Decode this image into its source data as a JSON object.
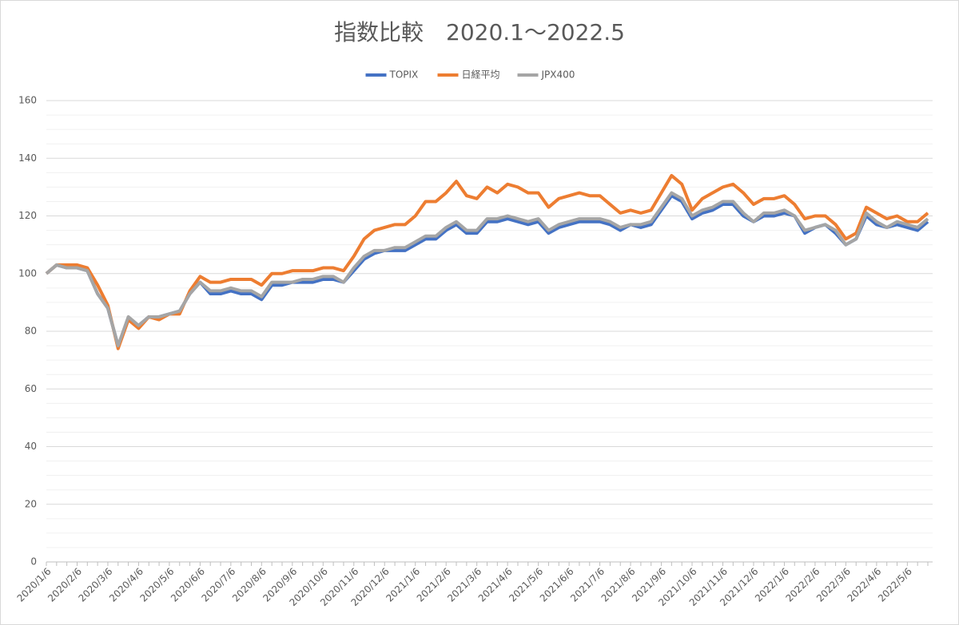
{
  "chart_data": {
    "type": "line",
    "title": "指数比較　2020.1～2022.5",
    "categories": [
      "2020/1/6",
      null,
      null,
      "2020/2/6",
      null,
      null,
      "2020/3/6",
      null,
      null,
      "2020/4/6",
      null,
      null,
      "2020/5/6",
      null,
      null,
      "2020/6/6",
      null,
      null,
      "2020/7/6",
      null,
      null,
      "2020/8/6",
      null,
      null,
      "2020/9/6",
      null,
      null,
      "2020/10/6",
      null,
      null,
      "2020/11/6",
      null,
      null,
      "2020/12/6",
      null,
      null,
      "2021/1/6",
      null,
      null,
      "2021/2/6",
      null,
      null,
      "2021/3/6",
      null,
      null,
      "2021/4/6",
      null,
      null,
      "2021/5/6",
      null,
      null,
      "2021/6/6",
      null,
      null,
      "2021/7/6",
      null,
      null,
      "2021/8/6",
      null,
      null,
      "2021/9/6",
      null,
      null,
      "2021/10/6",
      null,
      null,
      "2021/11/6",
      null,
      null,
      "2021/12/6",
      null,
      null,
      "2022/1/6",
      null,
      null,
      "2022/2/6",
      null,
      null,
      "2022/3/6",
      null,
      null,
      "2022/4/6",
      null,
      null,
      "2022/5/6",
      null,
      null
    ],
    "series": [
      {
        "name": "TOPIX",
        "color": "#4472c4",
        "values": [
          100,
          103,
          102,
          102,
          101,
          93,
          88,
          75,
          84,
          82,
          85,
          85,
          86,
          87,
          93,
          97,
          93,
          93,
          94,
          93,
          93,
          91,
          96,
          96,
          97,
          97,
          97,
          98,
          98,
          97,
          101,
          105,
          107,
          108,
          108,
          108,
          110,
          112,
          112,
          115,
          117,
          114,
          114,
          118,
          118,
          119,
          118,
          117,
          118,
          114,
          116,
          117,
          118,
          118,
          118,
          117,
          115,
          117,
          116,
          117,
          122,
          127,
          125,
          119,
          121,
          122,
          124,
          124,
          120,
          118,
          120,
          120,
          121,
          120,
          114,
          116,
          117,
          114,
          110,
          112,
          120,
          117,
          116,
          117,
          116,
          115,
          118
        ]
      },
      {
        "name": "日経平均",
        "color": "#ed7d31",
        "values": [
          100,
          103,
          103,
          103,
          102,
          96,
          89,
          74,
          84,
          81,
          85,
          84,
          86,
          86,
          94,
          99,
          97,
          97,
          98,
          98,
          98,
          96,
          100,
          100,
          101,
          101,
          101,
          102,
          102,
          101,
          106,
          112,
          115,
          116,
          117,
          117,
          120,
          125,
          125,
          128,
          132,
          127,
          126,
          130,
          128,
          131,
          130,
          128,
          128,
          123,
          126,
          127,
          128,
          127,
          127,
          124,
          121,
          122,
          121,
          122,
          128,
          134,
          131,
          122,
          126,
          128,
          130,
          131,
          128,
          124,
          126,
          126,
          127,
          124,
          119,
          120,
          120,
          117,
          112,
          114,
          123,
          121,
          119,
          120,
          118,
          118,
          121
        ]
      },
      {
        "name": "JPX400",
        "color": "#a5a5a5",
        "values": [
          100,
          103,
          102,
          102,
          101,
          93,
          88,
          75,
          85,
          82,
          85,
          85,
          86,
          87,
          93,
          97,
          94,
          94,
          95,
          94,
          94,
          92,
          97,
          97,
          97,
          98,
          98,
          99,
          99,
          97,
          102,
          106,
          108,
          108,
          109,
          109,
          111,
          113,
          113,
          116,
          118,
          115,
          115,
          119,
          119,
          120,
          119,
          118,
          119,
          115,
          117,
          118,
          119,
          119,
          119,
          118,
          116,
          117,
          117,
          118,
          123,
          128,
          126,
          120,
          122,
          123,
          125,
          125,
          121,
          118,
          121,
          121,
          122,
          120,
          115,
          116,
          117,
          115,
          110,
          112,
          121,
          118,
          116,
          118,
          117,
          116,
          119
        ]
      }
    ],
    "ylim": [
      0,
      160
    ],
    "yticks": [
      0,
      20,
      40,
      60,
      80,
      100,
      120,
      140,
      160
    ],
    "yminorticks": [
      5,
      10,
      15,
      25,
      30,
      35,
      45,
      50,
      55,
      65,
      70,
      75,
      85,
      90,
      95,
      105,
      110,
      115,
      125,
      130,
      135,
      145,
      150,
      155
    ],
    "grid": true,
    "legend": "top"
  }
}
